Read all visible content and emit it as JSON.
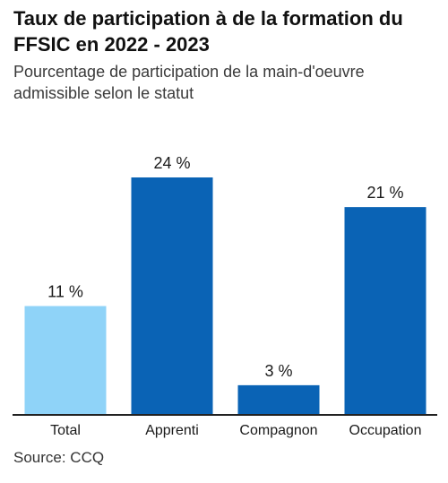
{
  "header": {
    "title": "Taux de participation à de la formation du FFSIC en 2022 - 2023",
    "subtitle": "Pourcentage de participation de la main-d'oeuvre admissible selon le statut"
  },
  "footer": {
    "source": "Source: CCQ"
  },
  "colors": {
    "highlight": "#8fd3f8",
    "primary": "#0a63b5",
    "axis": "#222222"
  },
  "chart_data": {
    "type": "bar",
    "title": "Taux de participation à de la formation du FFSIC en 2022 - 2023",
    "subtitle": "Pourcentage de participation de la main-d'oeuvre admissible selon le statut",
    "categories": [
      "Total",
      "Apprenti",
      "Compagnon",
      "Occupation"
    ],
    "values": [
      11,
      24,
      3,
      21
    ],
    "data_labels": [
      "11 %",
      "24 %",
      "3 %",
      "21 %"
    ],
    "unit": "%",
    "xlabel": "",
    "ylabel": "",
    "ylim": [
      0,
      24
    ],
    "grid": false,
    "legend": "none",
    "highlighted_category": "Total"
  }
}
